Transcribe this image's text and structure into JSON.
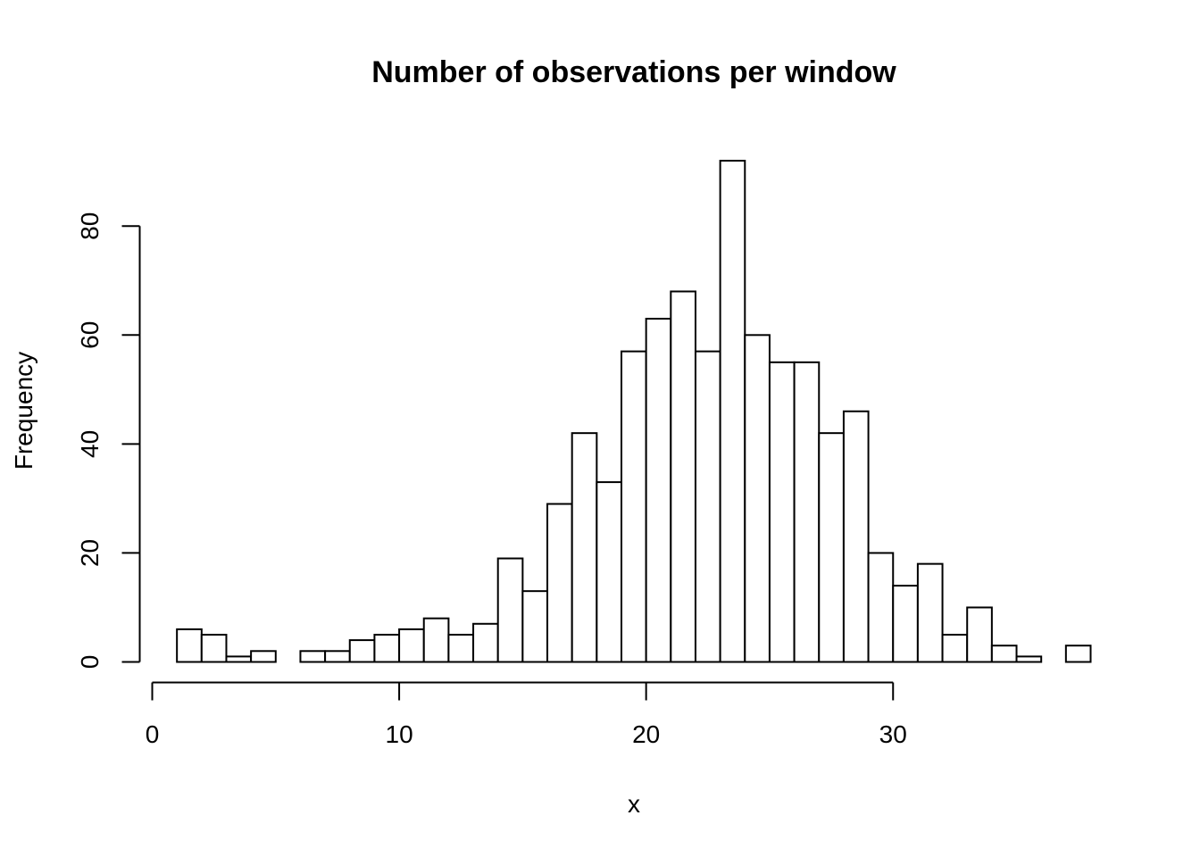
{
  "chart_data": {
    "type": "bar",
    "title": "Number of observations per window",
    "xlabel": "x",
    "ylabel": "Frequency",
    "xlim": [
      0,
      38
    ],
    "ylim": [
      0,
      92
    ],
    "x_ticks": [
      0,
      10,
      20,
      30
    ],
    "y_ticks": [
      0,
      20,
      40,
      60,
      80
    ],
    "bin_width": 1,
    "bins": [
      {
        "start": 1,
        "end": 2,
        "value": 6
      },
      {
        "start": 2,
        "end": 3,
        "value": 5
      },
      {
        "start": 3,
        "end": 4,
        "value": 1
      },
      {
        "start": 4,
        "end": 5,
        "value": 2
      },
      {
        "start": 5,
        "end": 6,
        "value": 0
      },
      {
        "start": 6,
        "end": 7,
        "value": 2
      },
      {
        "start": 7,
        "end": 8,
        "value": 2
      },
      {
        "start": 8,
        "end": 9,
        "value": 4
      },
      {
        "start": 9,
        "end": 10,
        "value": 5
      },
      {
        "start": 10,
        "end": 11,
        "value": 6
      },
      {
        "start": 11,
        "end": 12,
        "value": 8
      },
      {
        "start": 12,
        "end": 13,
        "value": 5
      },
      {
        "start": 13,
        "end": 14,
        "value": 7
      },
      {
        "start": 14,
        "end": 15,
        "value": 19
      },
      {
        "start": 15,
        "end": 16,
        "value": 13
      },
      {
        "start": 16,
        "end": 17,
        "value": 29
      },
      {
        "start": 17,
        "end": 18,
        "value": 42
      },
      {
        "start": 18,
        "end": 19,
        "value": 33
      },
      {
        "start": 19,
        "end": 20,
        "value": 57
      },
      {
        "start": 20,
        "end": 21,
        "value": 63
      },
      {
        "start": 21,
        "end": 22,
        "value": 68
      },
      {
        "start": 22,
        "end": 23,
        "value": 57
      },
      {
        "start": 23,
        "end": 24,
        "value": 92
      },
      {
        "start": 24,
        "end": 25,
        "value": 60
      },
      {
        "start": 25,
        "end": 26,
        "value": 55
      },
      {
        "start": 26,
        "end": 27,
        "value": 55
      },
      {
        "start": 27,
        "end": 28,
        "value": 42
      },
      {
        "start": 28,
        "end": 29,
        "value": 46
      },
      {
        "start": 29,
        "end": 30,
        "value": 20
      },
      {
        "start": 30,
        "end": 31,
        "value": 14
      },
      {
        "start": 31,
        "end": 32,
        "value": 18
      },
      {
        "start": 32,
        "end": 33,
        "value": 5
      },
      {
        "start": 33,
        "end": 34,
        "value": 10
      },
      {
        "start": 34,
        "end": 35,
        "value": 3
      },
      {
        "start": 35,
        "end": 36,
        "value": 1
      },
      {
        "start": 36,
        "end": 37,
        "value": 0
      },
      {
        "start": 37,
        "end": 38,
        "value": 3
      }
    ]
  }
}
